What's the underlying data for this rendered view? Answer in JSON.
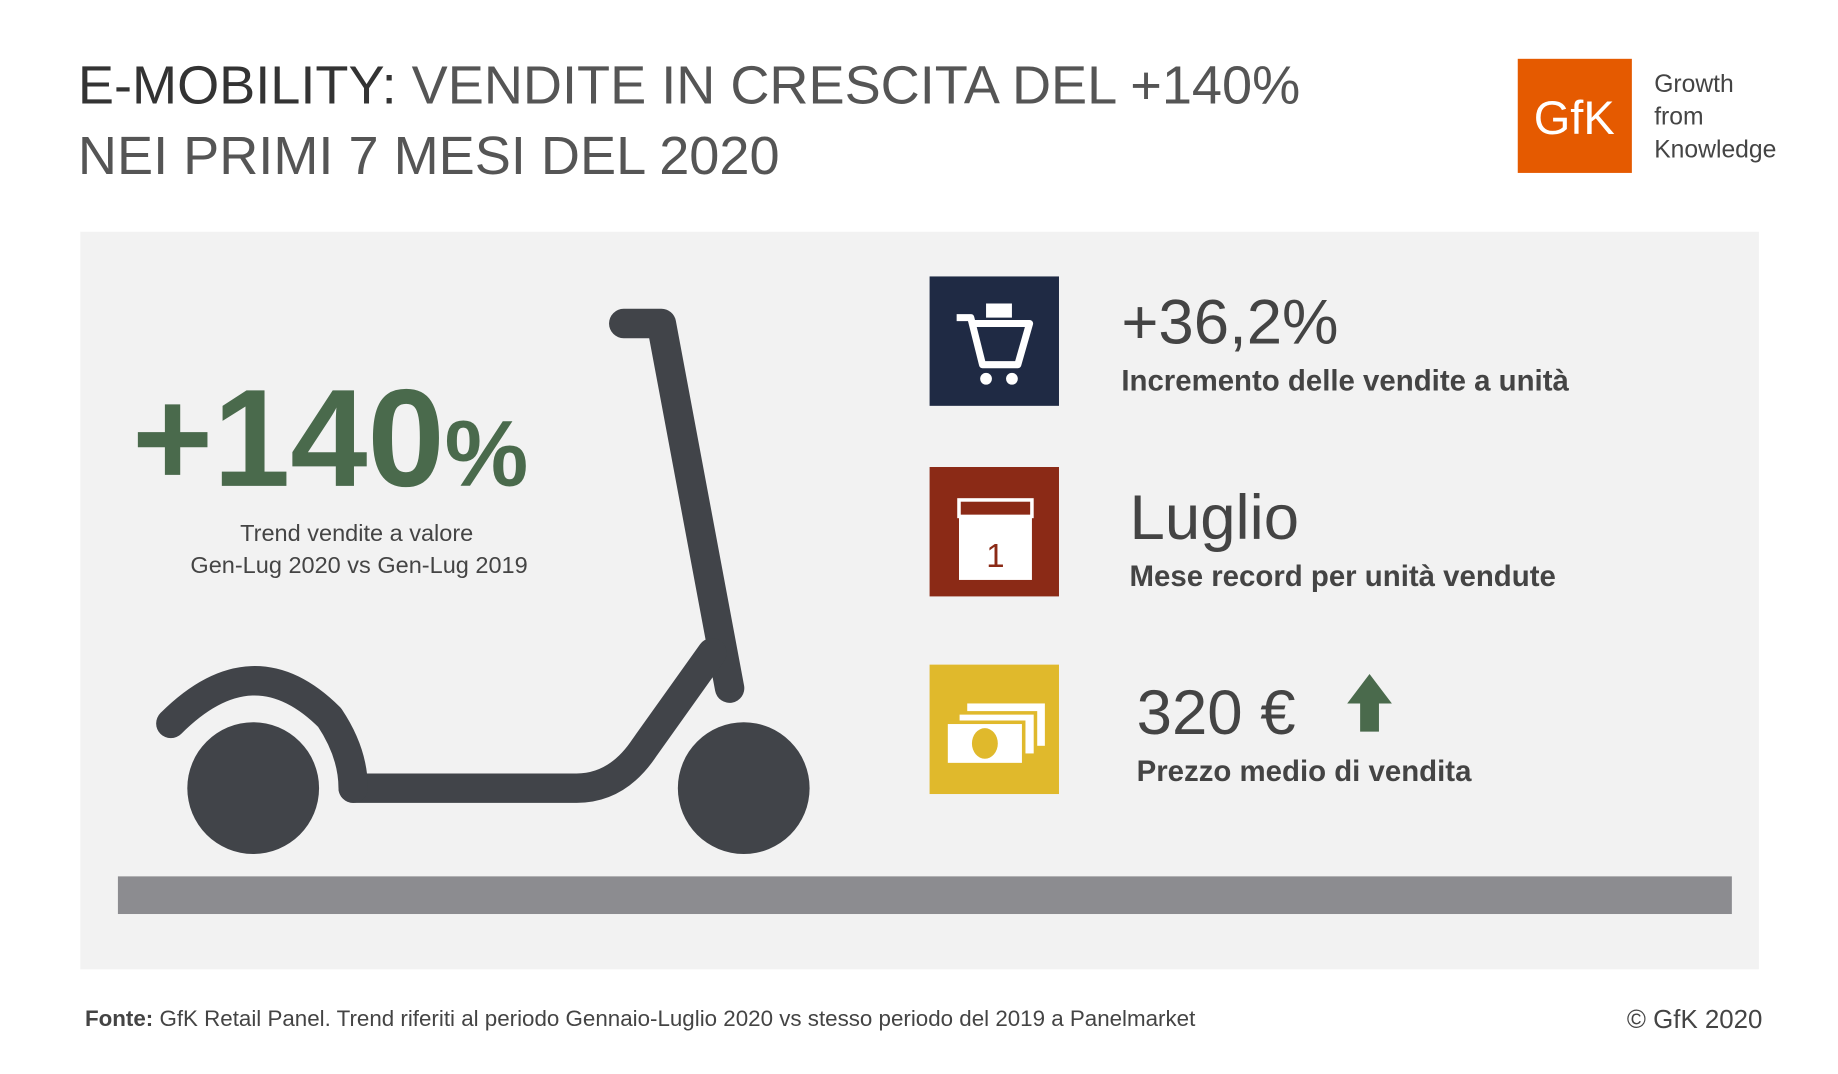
{
  "header": {
    "title_lead": "E-MOBILITY:",
    "title_rest": " VENDITE IN CRESCITA DEL +140%",
    "title_line2": "NEI PRIMI 7 MESI DEL 2020"
  },
  "logo": {
    "mark": "GfK",
    "tagline": [
      "Growth",
      "from",
      "Knowledge"
    ]
  },
  "main": {
    "value": "+140",
    "unit": "%",
    "caption": [
      "Trend vendite a valore",
      "Gen-Lug 2020 vs Gen-Lug 2019"
    ]
  },
  "stats": [
    {
      "value": "+36,2%",
      "label": "Incremento delle vendite a unità"
    },
    {
      "value": "Luglio",
      "label": "Mese record per unità vendute",
      "icon_text": "1"
    },
    {
      "value": "320 €",
      "label": "Prezzo medio di vendita"
    }
  ],
  "footer": {
    "source_lead": "Fonte:",
    "source_rest": " GfK Retail Panel. Trend riferiti al periodo Gennaio-Luglio 2020 vs stesso periodo del 2019 a Panelmarket",
    "copyright": "© GfK 2020"
  }
}
